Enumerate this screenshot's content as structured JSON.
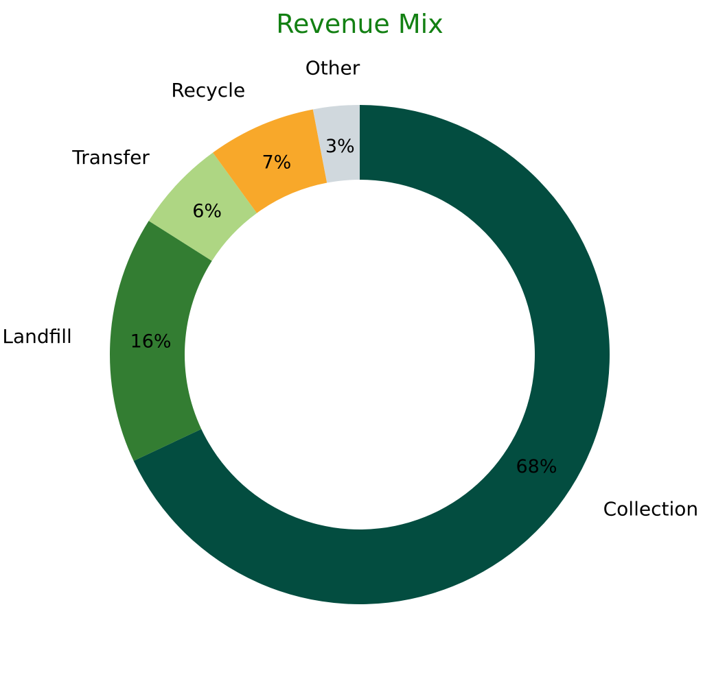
{
  "chart_data": {
    "type": "pie",
    "variant": "donut",
    "title": "Revenue Mix",
    "title_color": "#138013",
    "start_angle_deg": 90,
    "direction": "clockwise",
    "slices": [
      {
        "label": "Collection",
        "value": 68,
        "pct_label": "68%",
        "color": "#034d40"
      },
      {
        "label": "Landfill",
        "value": 16,
        "pct_label": "16%",
        "color": "#337d32"
      },
      {
        "label": "Transfer",
        "value": 6,
        "pct_label": "6%",
        "color": "#aed683"
      },
      {
        "label": "Recycle",
        "value": 7,
        "pct_label": "7%",
        "color": "#f8a82a"
      },
      {
        "label": "Other",
        "value": 3,
        "pct_label": "3%",
        "color": "#d0d8dd"
      }
    ],
    "legend": "none"
  }
}
